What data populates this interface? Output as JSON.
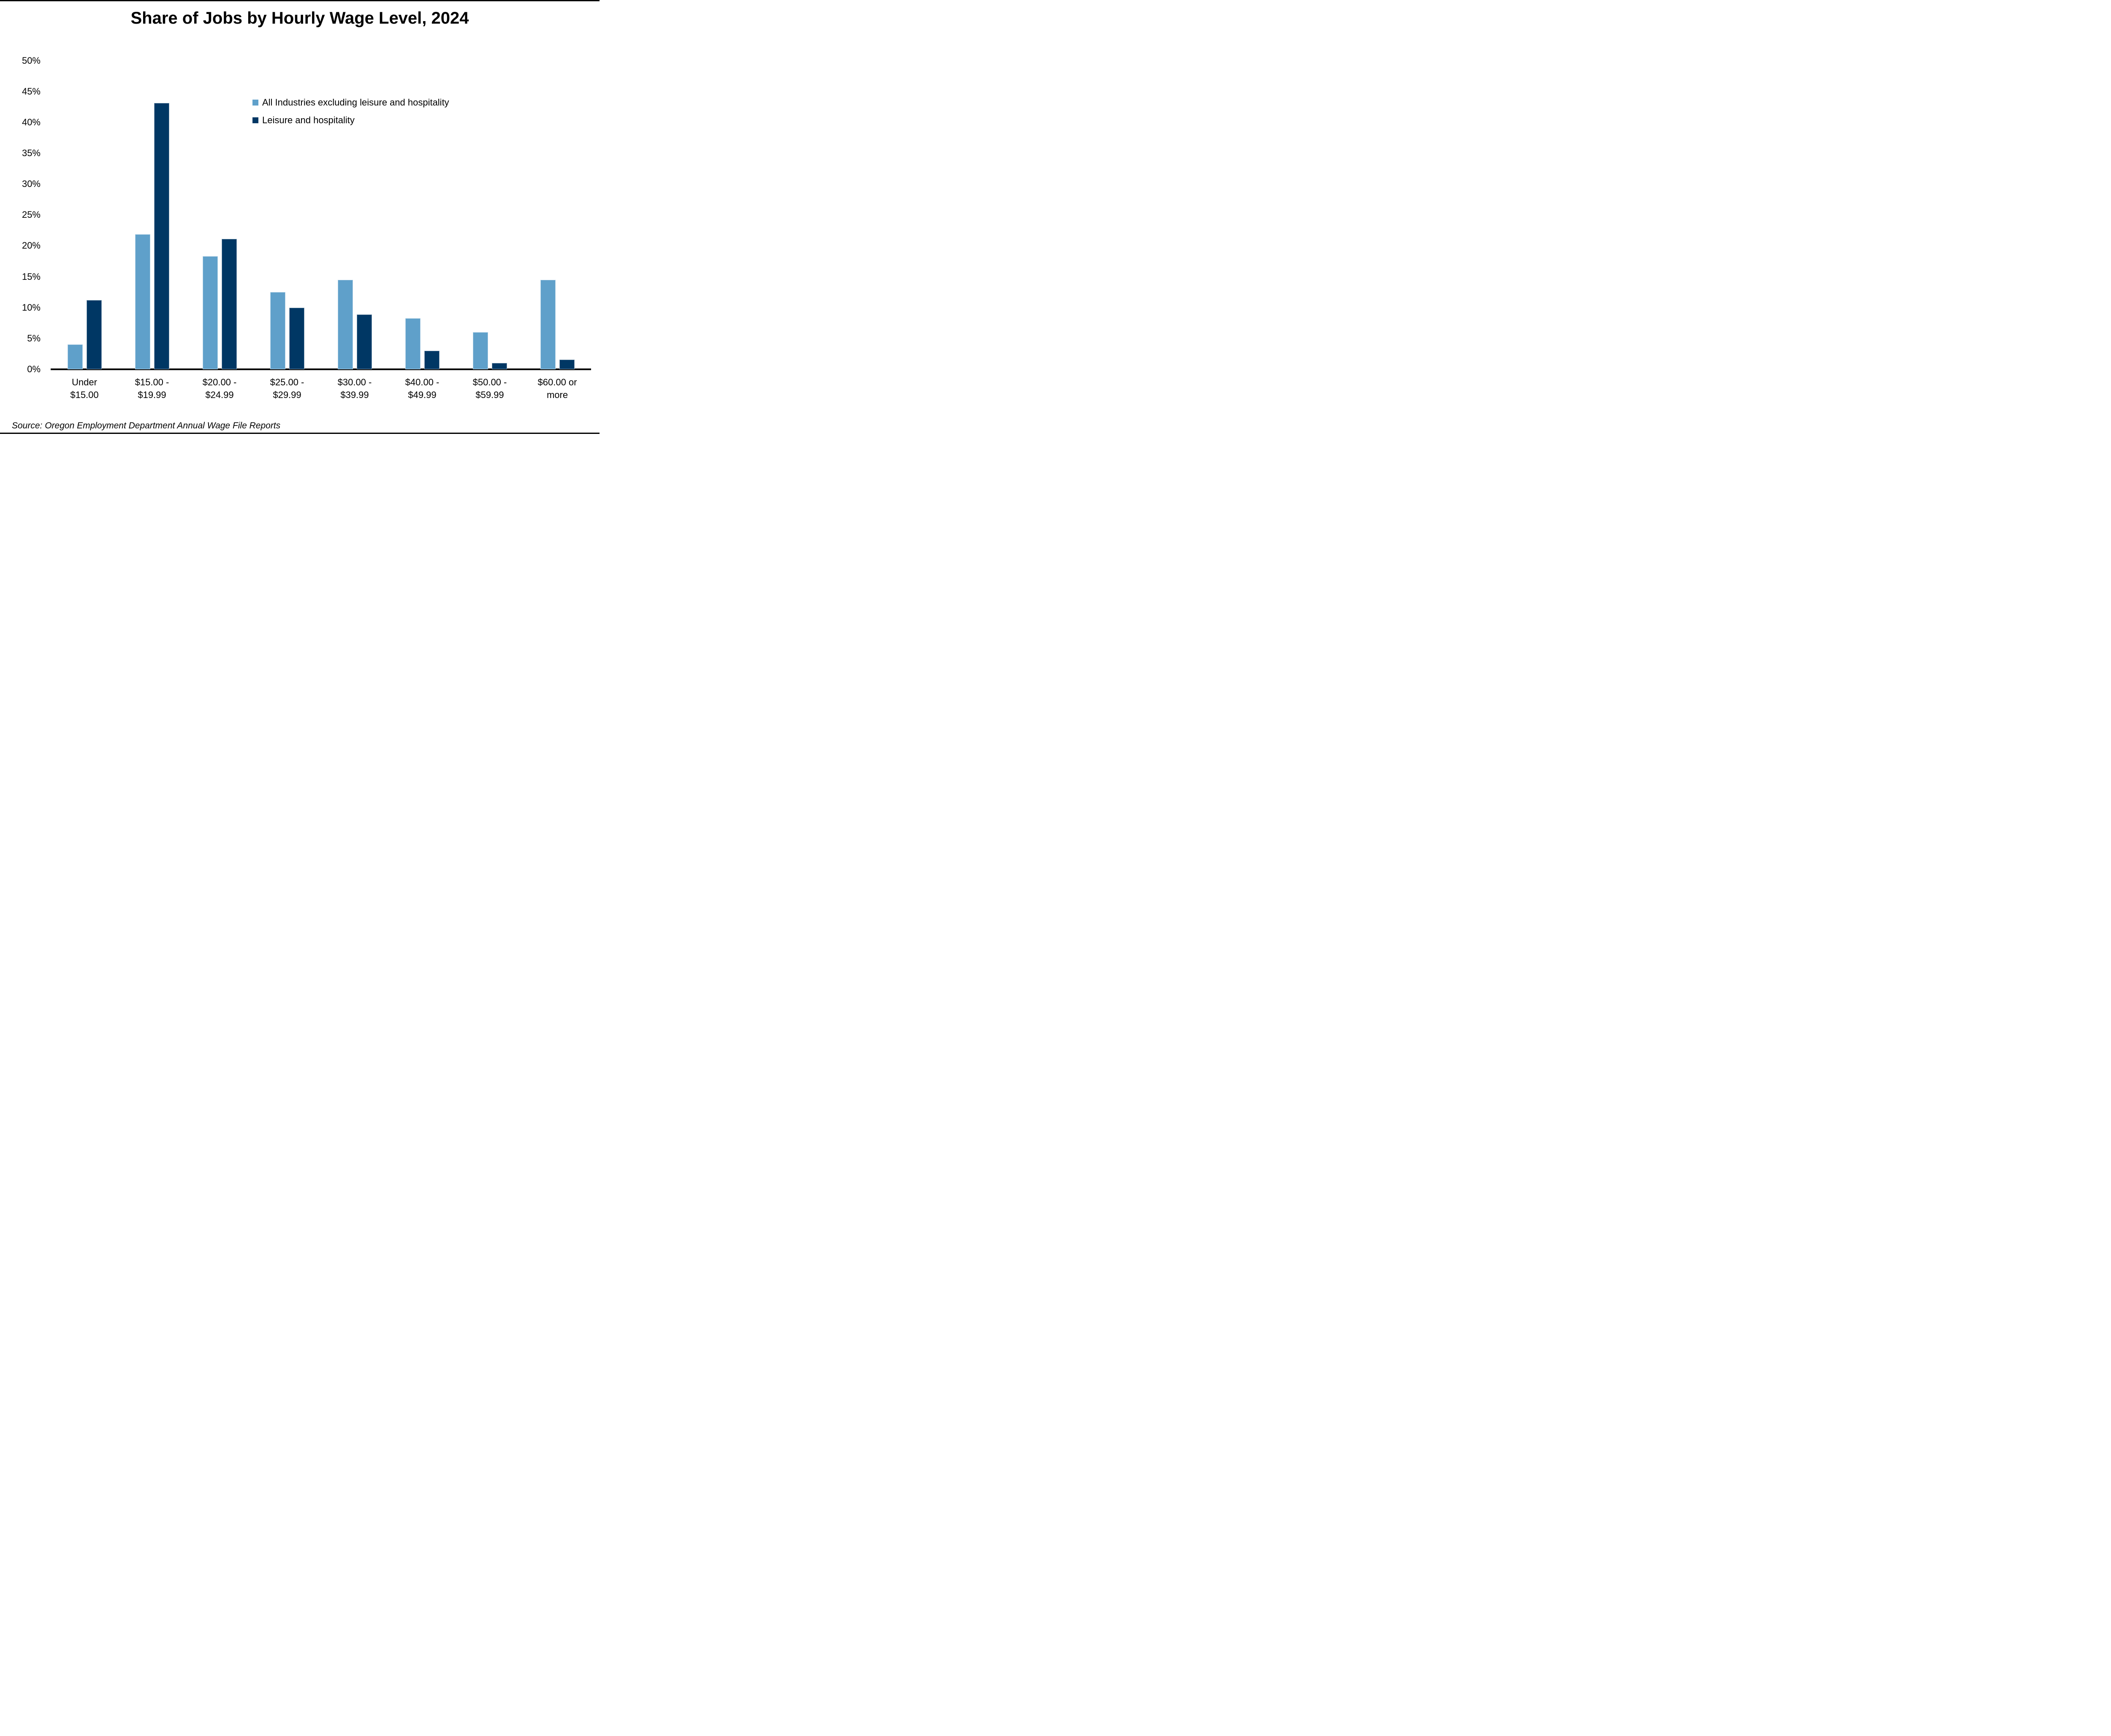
{
  "title": "Share of Jobs by Hourly Wage Level, 2024",
  "source": "Source: Oregon Employment Department Annual Wage File Reports",
  "colors": {
    "series1": "#5FA0CA",
    "series2": "#003764",
    "axis": "#000000",
    "background": "#ffffff"
  },
  "chart_data": {
    "type": "bar",
    "title": "Share of Jobs by Hourly Wage Level, 2024",
    "xlabel": "",
    "ylabel": "",
    "ylim": [
      0,
      50
    ],
    "ytick_step": 5,
    "ytick_suffix": "%",
    "grid": false,
    "legend_position": "inside-top-right",
    "categories": [
      {
        "line1": "Under",
        "line2": "$15.00"
      },
      {
        "line1": "$15.00 -",
        "line2": "$19.99"
      },
      {
        "line1": "$20.00 -",
        "line2": "$24.99"
      },
      {
        "line1": "$25.00 -",
        "line2": "$29.99"
      },
      {
        "line1": "$30.00 -",
        "line2": "$39.99"
      },
      {
        "line1": "$40.00 -",
        "line2": "$49.99"
      },
      {
        "line1": "$50.00 -",
        "line2": "$59.99"
      },
      {
        "line1": "$60.00 or",
        "line2": "more"
      }
    ],
    "series": [
      {
        "name": "All Industries excluding leisure and hospitality",
        "color": "#5FA0CA",
        "values": [
          4.0,
          21.9,
          18.3,
          12.5,
          14.5,
          8.3,
          6.0,
          14.5
        ]
      },
      {
        "name": "Leisure and hospitality",
        "color": "#003764",
        "values": [
          11.2,
          43.1,
          21.1,
          10.0,
          8.9,
          3.0,
          1.0,
          1.6
        ]
      }
    ]
  }
}
